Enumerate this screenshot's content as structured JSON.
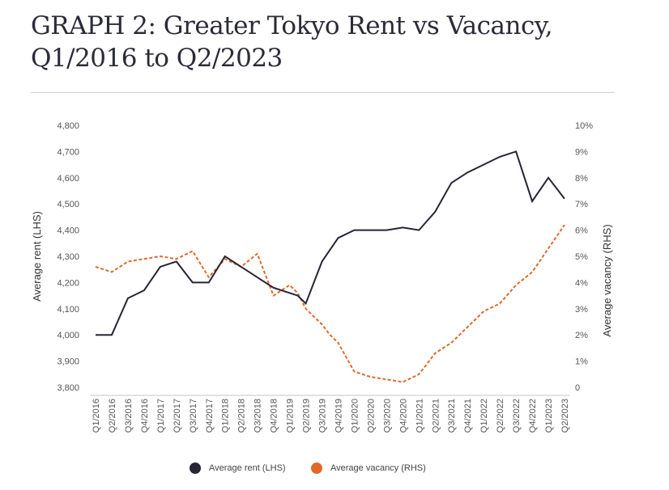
{
  "title_line1": "GRAPH 2: Greater Tokyo Rent vs Vacancy,",
  "title_line2": "Q1/2016 to Q2/2023",
  "chart_data": {
    "type": "line",
    "title": "GRAPH 2: Greater Tokyo Rent vs Vacancy, Q1/2016 to Q2/2023",
    "ylabel_left": "Average rent (LHS)",
    "ylabel_right": "Average vacancy (RHS)",
    "ylim_left": [
      3800,
      4800
    ],
    "ylim_right": [
      0,
      10
    ],
    "yticks_left": [
      "4,800",
      "4,700",
      "4,600",
      "4,500",
      "4,400",
      "4,300",
      "4,200",
      "4,100",
      "4,000",
      "3,900",
      "3,800"
    ],
    "yticks_right": [
      "10%",
      "9%",
      "8%",
      "7%",
      "6%",
      "5%",
      "4%",
      "3%",
      "2%",
      "1%",
      "0"
    ],
    "categories": [
      "Q1/2016",
      "Q2/2016",
      "Q3/2016",
      "Q4/2016",
      "Q1/2017",
      "Q2/2017",
      "Q3/2017",
      "Q4/2017",
      "Q1/2018",
      "Q2/2018",
      "Q3/2018",
      "Q4/2018",
      "Q1/2019",
      "Q2/2019",
      "Q3/2019",
      "Q4/2019",
      "Q1/2020",
      "Q2/2020",
      "Q3/2020",
      "Q4/2020",
      "Q1/2021",
      "Q2/2021",
      "Q3/2021",
      "Q4/2021",
      "Q1/2022",
      "Q2/2022",
      "Q3/2022",
      "Q4/2022",
      "Q1/2023",
      "Q2/2023"
    ],
    "grid": false,
    "legend_position": "bottom",
    "series": [
      {
        "name": "Average rent (LHS)",
        "axis": "left",
        "style": "solid",
        "color": "#252535",
        "values": [
          4000,
          4000,
          4140,
          4170,
          4260,
          4280,
          4200,
          4200,
          4300,
          4260,
          4220,
          4180,
          4160,
          4120,
          4280,
          4370,
          4400,
          4400,
          4400,
          4410,
          4400,
          4470,
          4580,
          4620,
          4650,
          4680,
          4700,
          4510,
          4600,
          4520
        ],
        "extra_points": [
          {
            "after": "Q1/2019",
            "value": 4150
          }
        ]
      },
      {
        "name": "Average vacancy (RHS)",
        "axis": "right",
        "style": "dashed",
        "color": "#e0692a",
        "values": [
          4.6,
          4.4,
          4.8,
          4.9,
          5.0,
          4.9,
          5.2,
          4.2,
          4.9,
          4.6,
          5.1,
          3.5,
          3.9,
          3.0,
          2.4,
          1.7,
          0.6,
          0.4,
          0.3,
          0.2,
          0.5,
          1.3,
          1.7,
          2.3,
          2.9,
          3.2,
          3.9,
          4.4,
          5.3,
          6.2
        ],
        "extra_points": [
          {
            "after": "Q1/2019",
            "value": 3.6
          },
          {
            "after": "Q3/2019",
            "value": 2.0
          }
        ]
      }
    ]
  }
}
